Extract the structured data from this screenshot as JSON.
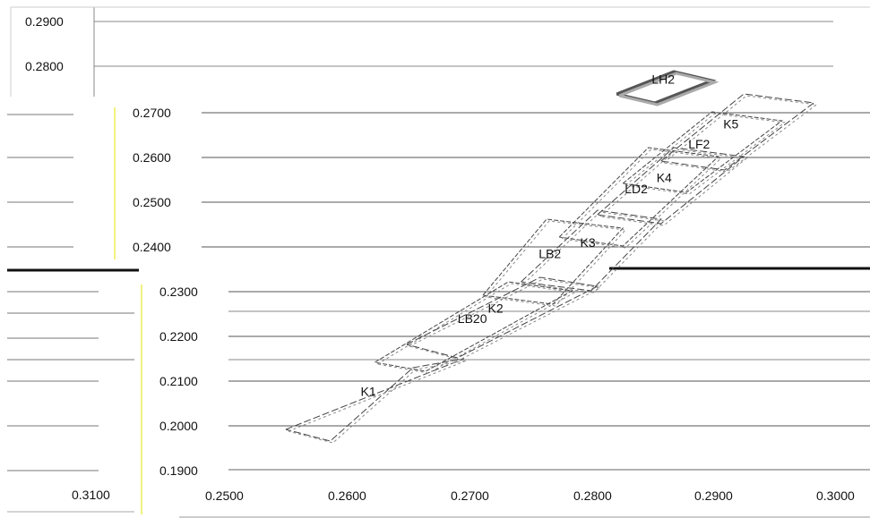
{
  "chart_data": {
    "type": "line",
    "xlim": [
      0.25,
      0.3
    ],
    "ylim": [
      0.19,
      0.29
    ],
    "x_ticks": [
      "0.2500",
      "0.2600",
      "0.2700",
      "0.2800",
      "0.2900",
      "0.3000"
    ],
    "y_ticks": [
      "0.1900",
      "0.2000",
      "0.2100",
      "0.2200",
      "0.2300",
      "0.2400",
      "0.2500",
      "0.2600",
      "0.2700",
      "0.2800",
      "0.2900"
    ],
    "extra_tick_labels": [
      "0.3100"
    ],
    "grid": true,
    "series": [
      {
        "name": "K1",
        "points": [
          [
            0.2545,
            0.199
          ],
          [
            0.2685,
            0.2148
          ],
          [
            0.2645,
            0.2128
          ],
          [
            0.258,
            0.1964
          ],
          [
            0.2545,
            0.199
          ]
        ]
      },
      {
        "name": "LB20",
        "points": [
          [
            0.2615,
            0.214
          ],
          [
            0.272,
            0.232
          ],
          [
            0.277,
            0.23
          ],
          [
            0.2655,
            0.212
          ],
          [
            0.2615,
            0.214
          ]
        ]
      },
      {
        "name": "K2",
        "points": [
          [
            0.264,
            0.218
          ],
          [
            0.2745,
            0.233
          ],
          [
            0.279,
            0.231
          ],
          [
            0.268,
            0.215
          ],
          [
            0.264,
            0.218
          ]
        ]
      },
      {
        "name": "LB2",
        "points": [
          [
            0.27,
            0.229
          ],
          [
            0.275,
            0.246
          ],
          [
            0.281,
            0.244
          ],
          [
            0.2755,
            0.227
          ],
          [
            0.27,
            0.229
          ]
        ]
      },
      {
        "name": "K3",
        "points": [
          [
            0.273,
            0.232
          ],
          [
            0.279,
            0.248
          ],
          [
            0.284,
            0.246
          ],
          [
            0.2785,
            0.23
          ],
          [
            0.273,
            0.232
          ]
        ]
      },
      {
        "name": "LD2",
        "points": [
          [
            0.276,
            0.242
          ],
          [
            0.283,
            0.262
          ],
          [
            0.2885,
            0.26
          ],
          [
            0.281,
            0.24
          ],
          [
            0.276,
            0.242
          ]
        ]
      },
      {
        "name": "K4",
        "points": [
          [
            0.279,
            0.247
          ],
          [
            0.285,
            0.262
          ],
          [
            0.2905,
            0.26
          ],
          [
            0.284,
            0.245
          ],
          [
            0.279,
            0.247
          ]
        ]
      },
      {
        "name": "LF2",
        "points": [
          [
            0.281,
            0.254
          ],
          [
            0.288,
            0.27
          ],
          [
            0.2935,
            0.268
          ],
          [
            0.286,
            0.252
          ],
          [
            0.281,
            0.254
          ]
        ]
      },
      {
        "name": "K5",
        "points": [
          [
            0.284,
            0.259
          ],
          [
            0.2905,
            0.274
          ],
          [
            0.296,
            0.272
          ],
          [
            0.289,
            0.257
          ],
          [
            0.284,
            0.259
          ]
        ]
      },
      {
        "name": "LH2",
        "points": [
          [
            0.2805,
            0.274
          ],
          [
            0.285,
            0.279
          ],
          [
            0.288,
            0.277
          ],
          [
            0.2835,
            0.272
          ],
          [
            0.2805,
            0.274
          ]
        ]
      }
    ]
  }
}
